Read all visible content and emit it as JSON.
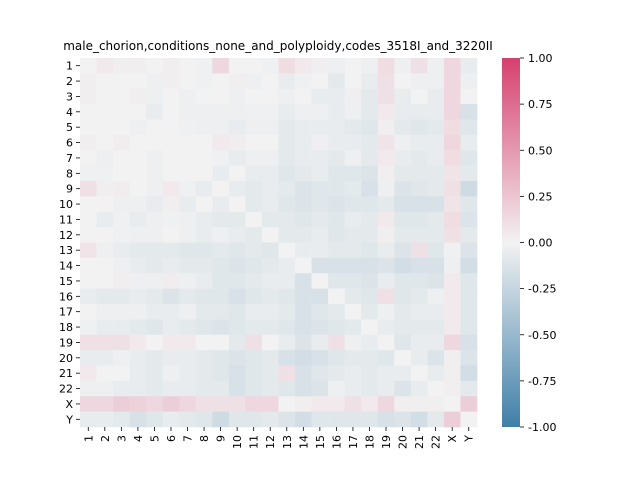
{
  "chart_data": {
    "type": "heatmap",
    "title": "male_chorion,conditions_none_and_polyploidy,codes_3518I_and_3220II",
    "xlabel": "",
    "ylabel": "",
    "categories": [
      "1",
      "2",
      "3",
      "4",
      "5",
      "6",
      "7",
      "8",
      "9",
      "10",
      "11",
      "12",
      "13",
      "14",
      "15",
      "16",
      "17",
      "18",
      "19",
      "20",
      "21",
      "22",
      "X",
      "Y"
    ],
    "vlim": [
      -1.0,
      1.0
    ],
    "colorbar_ticks": [
      "-1.00",
      "-0.75",
      "-0.50",
      "-0.25",
      "0.00",
      "0.25",
      "0.50",
      "0.75",
      "1.00"
    ],
    "colormap": {
      "negative": "#3f7fa8",
      "center": "#f2f2f2",
      "positive": "#d6406f"
    },
    "values": [
      [
        0.0,
        0.05,
        0.02,
        0.02,
        0.0,
        0.02,
        0.0,
        -0.02,
        0.15,
        0.0,
        0.0,
        -0.02,
        0.12,
        0.05,
        0.02,
        -0.03,
        0.0,
        -0.03,
        0.12,
        -0.03,
        0.1,
        -0.03,
        0.15,
        -0.05
      ],
      [
        0.02,
        0.0,
        0.0,
        0.0,
        -0.03,
        0.02,
        0.0,
        -0.02,
        0.0,
        0.02,
        -0.03,
        0.0,
        -0.05,
        -0.02,
        0.0,
        -0.08,
        0.0,
        -0.05,
        0.1,
        0.0,
        -0.03,
        -0.03,
        0.15,
        -0.03
      ],
      [
        0.02,
        0.0,
        0.0,
        0.02,
        -0.03,
        0.0,
        -0.03,
        0.0,
        0.0,
        -0.03,
        0.0,
        0.0,
        -0.03,
        0.0,
        -0.05,
        -0.05,
        0.02,
        -0.08,
        0.1,
        -0.05,
        0.0,
        -0.05,
        0.15,
        0.0
      ],
      [
        0.0,
        0.0,
        0.0,
        0.0,
        -0.05,
        0.0,
        -0.03,
        -0.03,
        -0.03,
        -0.03,
        -0.02,
        -0.02,
        -0.05,
        -0.03,
        -0.03,
        -0.05,
        -0.03,
        -0.08,
        0.05,
        -0.05,
        -0.05,
        -0.05,
        0.15,
        -0.15
      ],
      [
        0.0,
        0.0,
        0.0,
        -0.03,
        0.0,
        0.0,
        -0.02,
        -0.03,
        -0.03,
        -0.05,
        -0.03,
        -0.03,
        -0.08,
        -0.05,
        -0.05,
        -0.05,
        -0.08,
        -0.1,
        0.02,
        -0.08,
        -0.1,
        -0.08,
        0.12,
        -0.1
      ],
      [
        0.02,
        0.0,
        0.03,
        0.0,
        0.0,
        0.0,
        0.0,
        0.0,
        0.05,
        0.03,
        0.0,
        0.0,
        -0.08,
        -0.05,
        0.02,
        -0.05,
        -0.05,
        -0.08,
        0.08,
        -0.03,
        -0.05,
        -0.05,
        0.15,
        -0.05
      ],
      [
        0.0,
        -0.03,
        0.0,
        0.0,
        -0.03,
        0.0,
        0.0,
        0.0,
        -0.02,
        -0.05,
        -0.03,
        -0.03,
        -0.08,
        -0.05,
        -0.05,
        -0.08,
        -0.03,
        -0.08,
        0.05,
        -0.05,
        -0.08,
        -0.05,
        0.12,
        -0.1
      ],
      [
        -0.02,
        -0.02,
        0.0,
        0.0,
        -0.03,
        0.0,
        0.0,
        0.0,
        -0.05,
        0.0,
        -0.05,
        -0.05,
        -0.1,
        -0.08,
        -0.05,
        -0.1,
        -0.1,
        -0.12,
        0.02,
        -0.08,
        -0.08,
        -0.08,
        0.08,
        -0.08
      ],
      [
        0.1,
        0.02,
        0.03,
        0.0,
        -0.03,
        0.05,
        -0.02,
        -0.05,
        0.0,
        -0.05,
        -0.08,
        -0.05,
        -0.08,
        -0.12,
        -0.1,
        -0.1,
        -0.08,
        -0.15,
        -0.03,
        -0.12,
        -0.1,
        -0.08,
        0.1,
        -0.2
      ],
      [
        0.0,
        0.0,
        -0.03,
        -0.03,
        -0.05,
        0.02,
        -0.05,
        0.0,
        -0.05,
        0.0,
        -0.08,
        -0.05,
        -0.1,
        -0.12,
        -0.1,
        -0.12,
        -0.1,
        -0.1,
        -0.08,
        -0.15,
        -0.15,
        -0.15,
        0.08,
        -0.1
      ],
      [
        0.0,
        -0.05,
        -0.02,
        -0.05,
        -0.03,
        -0.02,
        -0.03,
        -0.05,
        -0.08,
        -0.08,
        0.0,
        -0.08,
        -0.08,
        -0.1,
        -0.08,
        -0.1,
        -0.05,
        -0.08,
        0.05,
        -0.1,
        -0.1,
        -0.08,
        0.12,
        -0.12
      ],
      [
        0.0,
        0.0,
        -0.02,
        -0.03,
        -0.03,
        0.0,
        -0.03,
        -0.05,
        -0.03,
        -0.05,
        -0.08,
        0.0,
        -0.08,
        -0.08,
        -0.05,
        -0.1,
        -0.08,
        -0.08,
        0.02,
        -0.08,
        -0.08,
        -0.08,
        0.1,
        -0.08
      ],
      [
        0.08,
        -0.03,
        -0.05,
        -0.08,
        -0.08,
        -0.08,
        -0.1,
        -0.1,
        -0.08,
        -0.1,
        -0.08,
        -0.1,
        0.0,
        -0.05,
        -0.05,
        -0.08,
        -0.08,
        -0.1,
        -0.05,
        -0.12,
        0.1,
        -0.1,
        -0.02,
        -0.12
      ],
      [
        0.0,
        0.0,
        -0.03,
        -0.05,
        -0.08,
        -0.05,
        -0.08,
        -0.08,
        -0.1,
        -0.12,
        -0.1,
        -0.08,
        -0.05,
        0.0,
        -0.15,
        -0.15,
        -0.15,
        -0.15,
        -0.12,
        -0.18,
        -0.15,
        -0.15,
        -0.03,
        -0.18
      ],
      [
        0.0,
        0.0,
        0.02,
        -0.03,
        -0.03,
        0.03,
        -0.03,
        -0.05,
        -0.1,
        -0.1,
        -0.08,
        -0.05,
        -0.05,
        -0.15,
        0.0,
        -0.1,
        -0.1,
        -0.12,
        -0.05,
        -0.1,
        -0.1,
        -0.12,
        0.05,
        -0.1
      ],
      [
        -0.05,
        -0.08,
        -0.08,
        -0.05,
        -0.08,
        -0.12,
        -0.08,
        -0.1,
        -0.1,
        -0.15,
        -0.1,
        -0.08,
        -0.1,
        -0.15,
        -0.15,
        0.0,
        -0.08,
        -0.1,
        0.1,
        -0.1,
        -0.08,
        -0.03,
        0.05,
        -0.1
      ],
      [
        0.0,
        -0.03,
        -0.03,
        -0.03,
        -0.05,
        -0.05,
        -0.03,
        -0.08,
        -0.08,
        -0.1,
        -0.05,
        -0.05,
        -0.08,
        -0.15,
        -0.1,
        -0.08,
        0.0,
        -0.08,
        -0.03,
        -0.08,
        -0.05,
        -0.05,
        0.05,
        -0.1
      ],
      [
        -0.02,
        -0.05,
        -0.05,
        -0.08,
        -0.1,
        -0.05,
        -0.08,
        -0.1,
        -0.12,
        -0.1,
        -0.08,
        -0.08,
        -0.1,
        -0.15,
        -0.12,
        -0.1,
        -0.08,
        0.0,
        -0.05,
        -0.08,
        -0.08,
        -0.08,
        0.05,
        -0.1
      ],
      [
        0.1,
        0.1,
        0.1,
        0.05,
        0.0,
        0.05,
        0.05,
        0.0,
        0.0,
        -0.08,
        0.1,
        0.0,
        -0.05,
        -0.12,
        -0.05,
        0.1,
        -0.03,
        -0.05,
        0.0,
        -0.1,
        -0.05,
        -0.05,
        0.15,
        -0.15
      ],
      [
        -0.05,
        -0.05,
        -0.03,
        -0.05,
        -0.08,
        -0.05,
        -0.05,
        -0.08,
        -0.1,
        -0.12,
        -0.1,
        -0.08,
        -0.15,
        -0.18,
        -0.15,
        -0.1,
        -0.08,
        -0.08,
        -0.1,
        0.0,
        -0.05,
        -0.12,
        0.02,
        -0.12
      ],
      [
        0.05,
        0.0,
        0.0,
        -0.05,
        -0.08,
        -0.03,
        -0.05,
        -0.08,
        -0.1,
        -0.15,
        -0.1,
        -0.08,
        0.1,
        -0.15,
        -0.1,
        -0.08,
        -0.05,
        -0.08,
        -0.05,
        -0.05,
        0.0,
        -0.05,
        0.02,
        -0.18
      ],
      [
        -0.03,
        -0.03,
        -0.05,
        -0.05,
        -0.08,
        -0.05,
        -0.05,
        -0.08,
        -0.08,
        -0.15,
        -0.1,
        -0.08,
        -0.1,
        -0.15,
        -0.12,
        -0.03,
        -0.05,
        -0.08,
        -0.05,
        -0.12,
        -0.05,
        0.0,
        0.02,
        -0.08
      ],
      [
        0.15,
        0.15,
        0.2,
        0.18,
        0.15,
        0.2,
        0.15,
        0.1,
        0.1,
        0.1,
        0.15,
        0.15,
        0.0,
        0.02,
        0.05,
        0.05,
        0.1,
        0.05,
        0.15,
        0.02,
        0.02,
        0.02,
        0.0,
        0.2
      ],
      [
        -0.05,
        -0.05,
        -0.08,
        -0.15,
        -0.1,
        -0.05,
        -0.08,
        -0.1,
        -0.2,
        -0.1,
        -0.1,
        -0.08,
        -0.12,
        -0.18,
        -0.1,
        -0.1,
        -0.1,
        -0.1,
        -0.15,
        -0.12,
        -0.18,
        -0.08,
        0.2,
        0.0
      ]
    ]
  }
}
